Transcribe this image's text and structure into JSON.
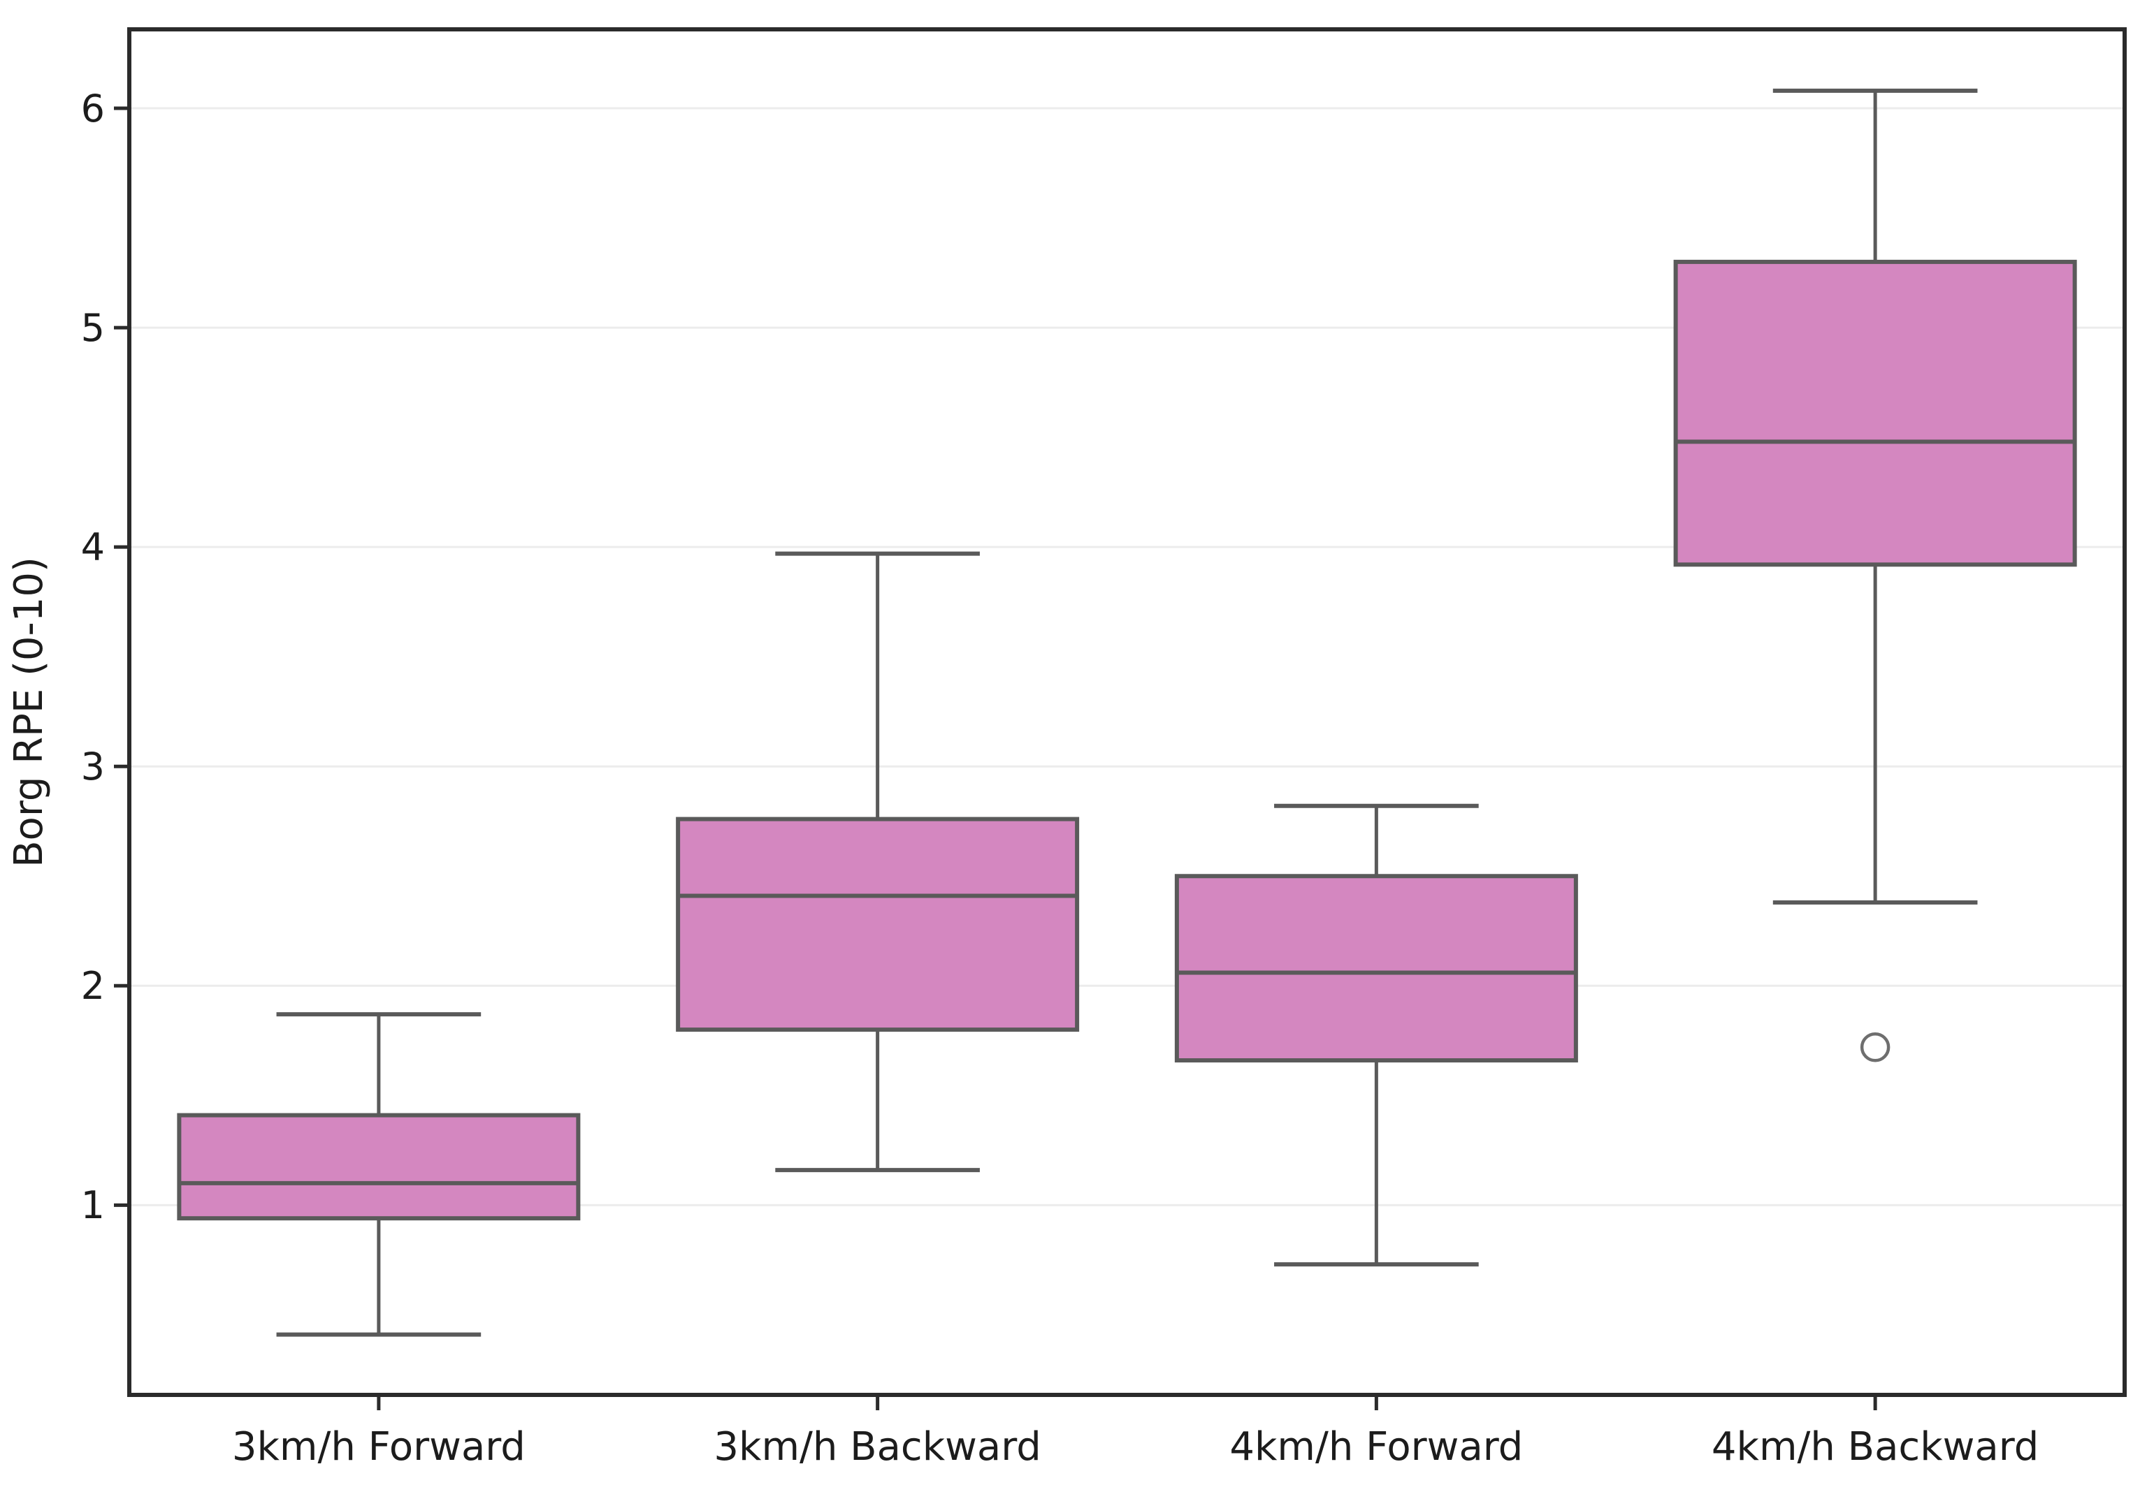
{
  "figure": {
    "kind": "boxplot-figure",
    "background": "#ffffff"
  },
  "chart_data": {
    "type": "box",
    "title": "",
    "xlabel": "",
    "ylabel": "Borg RPE (0-10)",
    "categories": [
      "3km/h Forward",
      "3km/h Backward",
      "4km/h Forward",
      "4km/h Backward"
    ],
    "yticks": [
      1,
      2,
      3,
      4,
      5,
      6
    ],
    "ylim": [
      0.135,
      6.36
    ],
    "grid": "horizontal-light",
    "legend": "none",
    "boxes": [
      {
        "category": "3km/h Forward",
        "whisker_low": 0.41,
        "q1": 0.94,
        "median": 1.1,
        "q3": 1.41,
        "whisker_high": 1.87,
        "outliers": []
      },
      {
        "category": "3km/h Backward",
        "whisker_low": 1.16,
        "q1": 1.8,
        "median": 2.41,
        "q3": 2.76,
        "whisker_high": 3.97,
        "outliers": []
      },
      {
        "category": "4km/h Forward",
        "whisker_low": 0.73,
        "q1": 1.66,
        "median": 2.06,
        "q3": 2.5,
        "whisker_high": 2.82,
        "outliers": []
      },
      {
        "category": "4km/h Backward",
        "whisker_low": 2.38,
        "q1": 3.92,
        "median": 4.48,
        "q3": 5.3,
        "whisker_high": 6.08,
        "outliers": [
          1.72
        ]
      }
    ],
    "style": {
      "box_fill": "#d487c0",
      "box_edge": "#5a5a5a",
      "median_color": "#5a5a5a",
      "whisker_color": "#5a5a5a",
      "outlier_edge": "#6e6e6e",
      "grid_color": "#ececec",
      "spine_color": "#2b2b2b",
      "text_color": "#1c1c1c",
      "background": "#ffffff",
      "box_width_frac": 0.8,
      "cap_width_frac": 0.41
    }
  }
}
